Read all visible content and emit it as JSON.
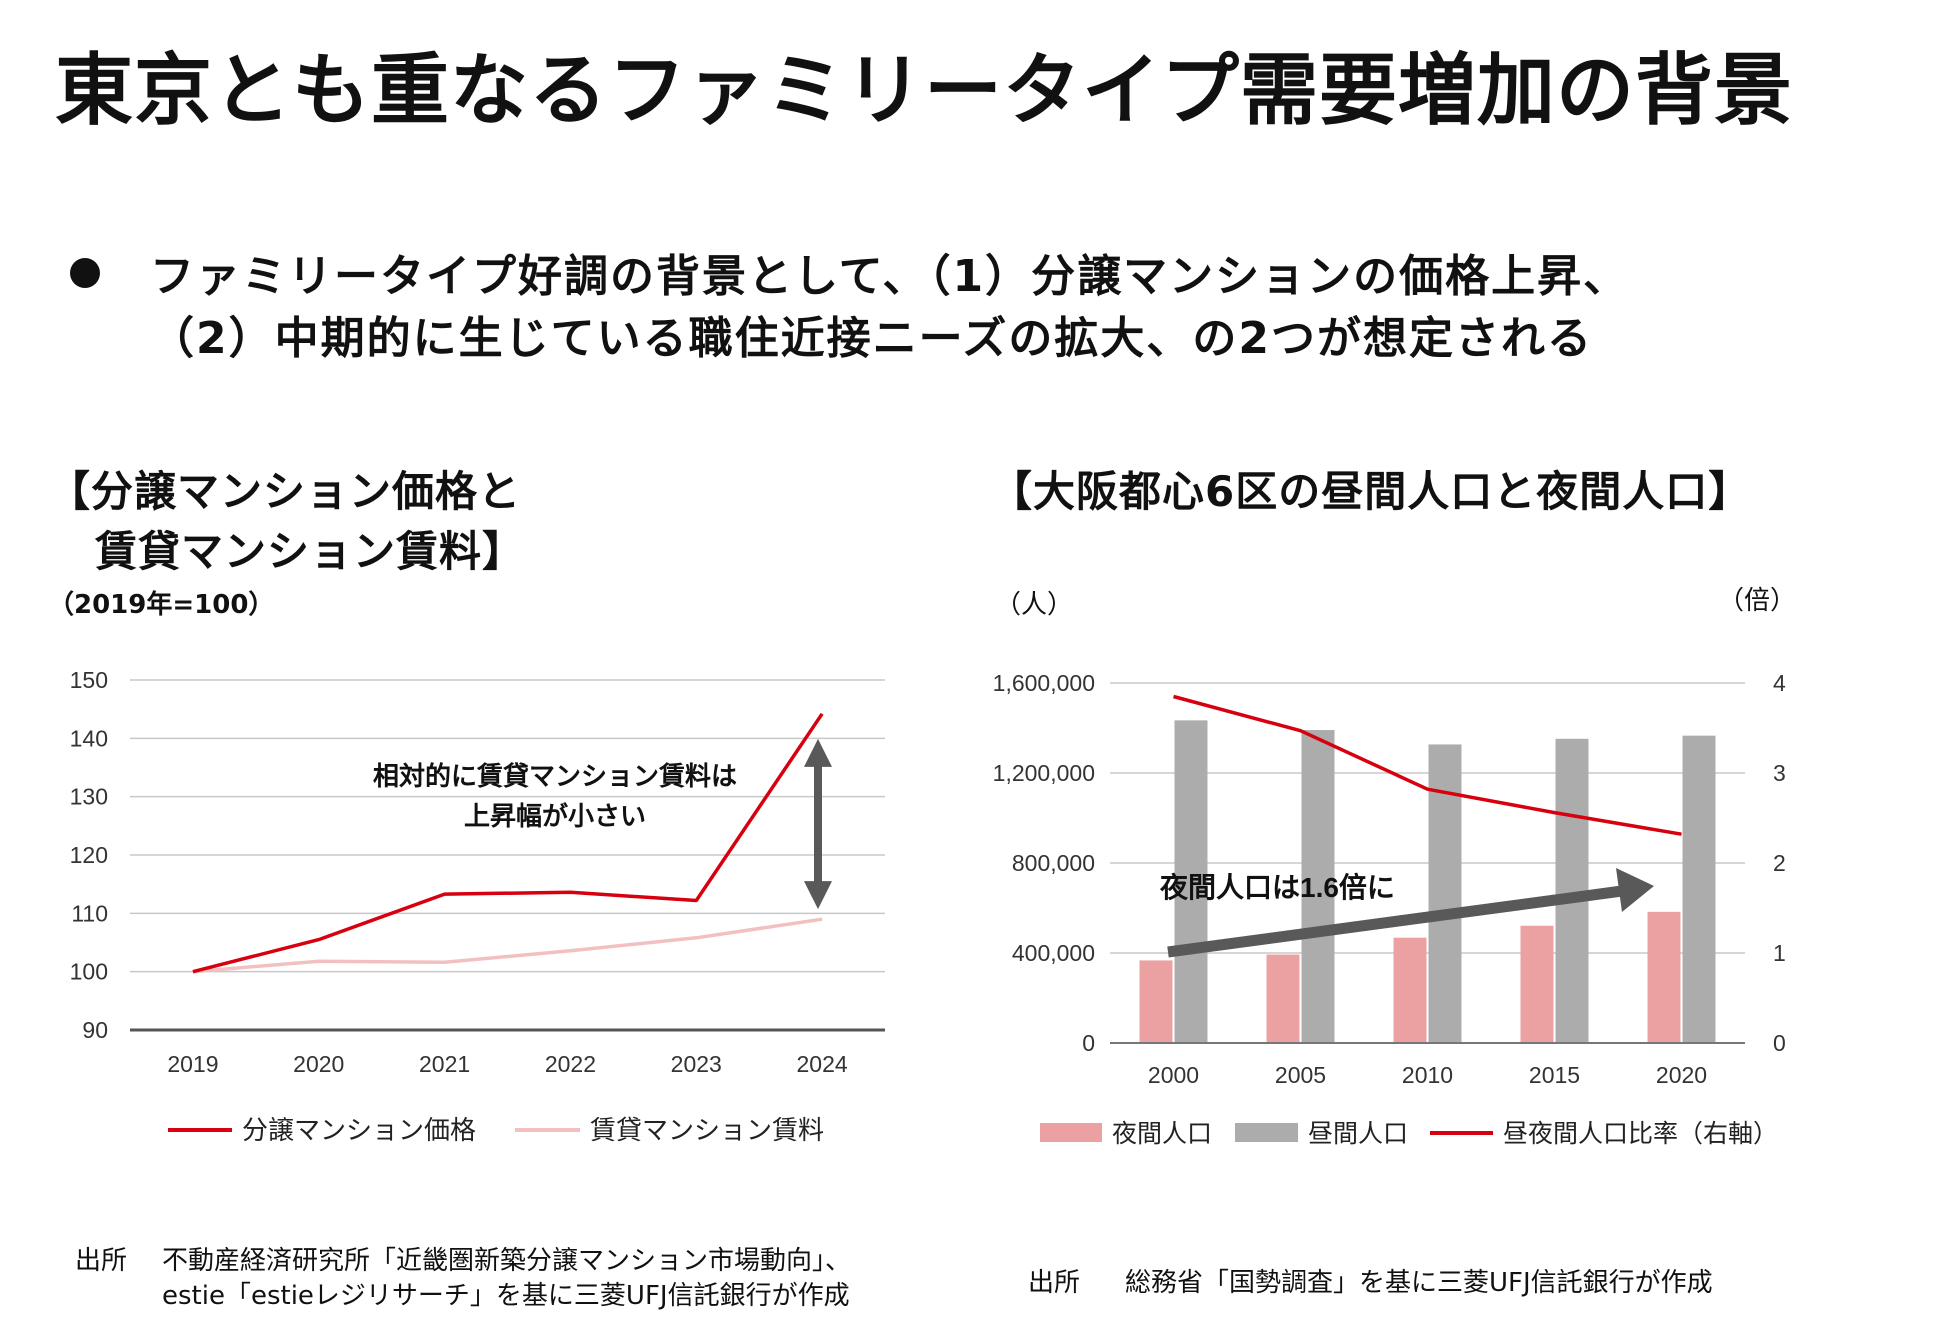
{
  "title": "東京とも重なるファミリータイプ需要増加の背景",
  "bullet": {
    "line1": "ファミリータイプ好調の背景として、（1）分譲マンションの価格上昇、",
    "line2": "（2）中期的に生じている職住近接ニーズの拡大、の2つが想定される"
  },
  "left_panel": {
    "title_line1": "【分譲マンション価格と",
    "title_line2": "賃貸マンション賃料】",
    "unit": "（2019年=100）",
    "annotation_line1": "相対的に賃貸マンション賃料は",
    "annotation_line2": "上昇幅が小さい",
    "source_label": "出所",
    "source_line1": "不動産経済研究所「近畿圏新築分譲マンション市場動向」、",
    "source_line2": "estie「estieレジリサーチ」を基に三菱UFJ信託銀行が作成"
  },
  "right_panel": {
    "title": "【大阪都心6区の昼間人口と夜間人口】",
    "unit_left": "（人）",
    "unit_right": "（倍）",
    "annotation": "夜間人口は1.6倍に",
    "source_label": "出所",
    "source_text": "総務省「国勢調査」を基に三菱UFJ信託銀行が作成"
  },
  "colors": {
    "red": "#d7000f",
    "pink_line": "#f2c0c0",
    "pink_bar": "#eba0a2",
    "gray_bar": "#acacac",
    "grid": "#c8c8c8",
    "axis": "#555555",
    "arrow": "#595959"
  },
  "chart_data": [
    {
      "type": "line",
      "title": "分譲マンション価格と賃貸マンション賃料",
      "x": [
        "2019",
        "2020",
        "2021",
        "2022",
        "2023",
        "2024"
      ],
      "ylim": [
        90,
        150
      ],
      "yticks": [
        90,
        100,
        110,
        120,
        130,
        140,
        150
      ],
      "ylabel": "（2019年=100）",
      "series": [
        {
          "name": "分譲マンション価格",
          "values": [
            100,
            105.5,
            113.3,
            113.6,
            112.2,
            144.2
          ]
        },
        {
          "name": "賃貸マンション賃料",
          "values": [
            100,
            101.8,
            101.6,
            103.6,
            105.8,
            109
          ]
        }
      ],
      "legend": "bottom"
    },
    {
      "type": "bar",
      "title": "大阪都心6区の昼間人口と夜間人口",
      "categories": [
        "2000",
        "2005",
        "2010",
        "2015",
        "2020"
      ],
      "series": [
        {
          "name": "夜間人口",
          "axis": "left",
          "values": [
            367000,
            393000,
            468000,
            521000,
            583000
          ]
        },
        {
          "name": "昼間人口",
          "axis": "left",
          "values": [
            1434000,
            1391000,
            1327000,
            1352000,
            1366000
          ]
        },
        {
          "name": "昼夜間人口比率（右軸）",
          "type": "line",
          "axis": "right",
          "values": [
            3.85,
            3.47,
            2.82,
            2.56,
            2.32
          ]
        }
      ],
      "ylim_left": [
        0,
        1600000
      ],
      "yticks_left": [
        "0",
        "400,000",
        "800,000",
        "1,200,000",
        "1,600,000"
      ],
      "yticks_left_values": [
        0,
        400000,
        800000,
        1200000,
        1600000
      ],
      "ylim_right": [
        0,
        4
      ],
      "yticks_right": [
        0,
        1,
        2,
        3,
        4
      ],
      "ylabel_left": "（人）",
      "ylabel_right": "（倍）",
      "legend": "bottom"
    }
  ]
}
